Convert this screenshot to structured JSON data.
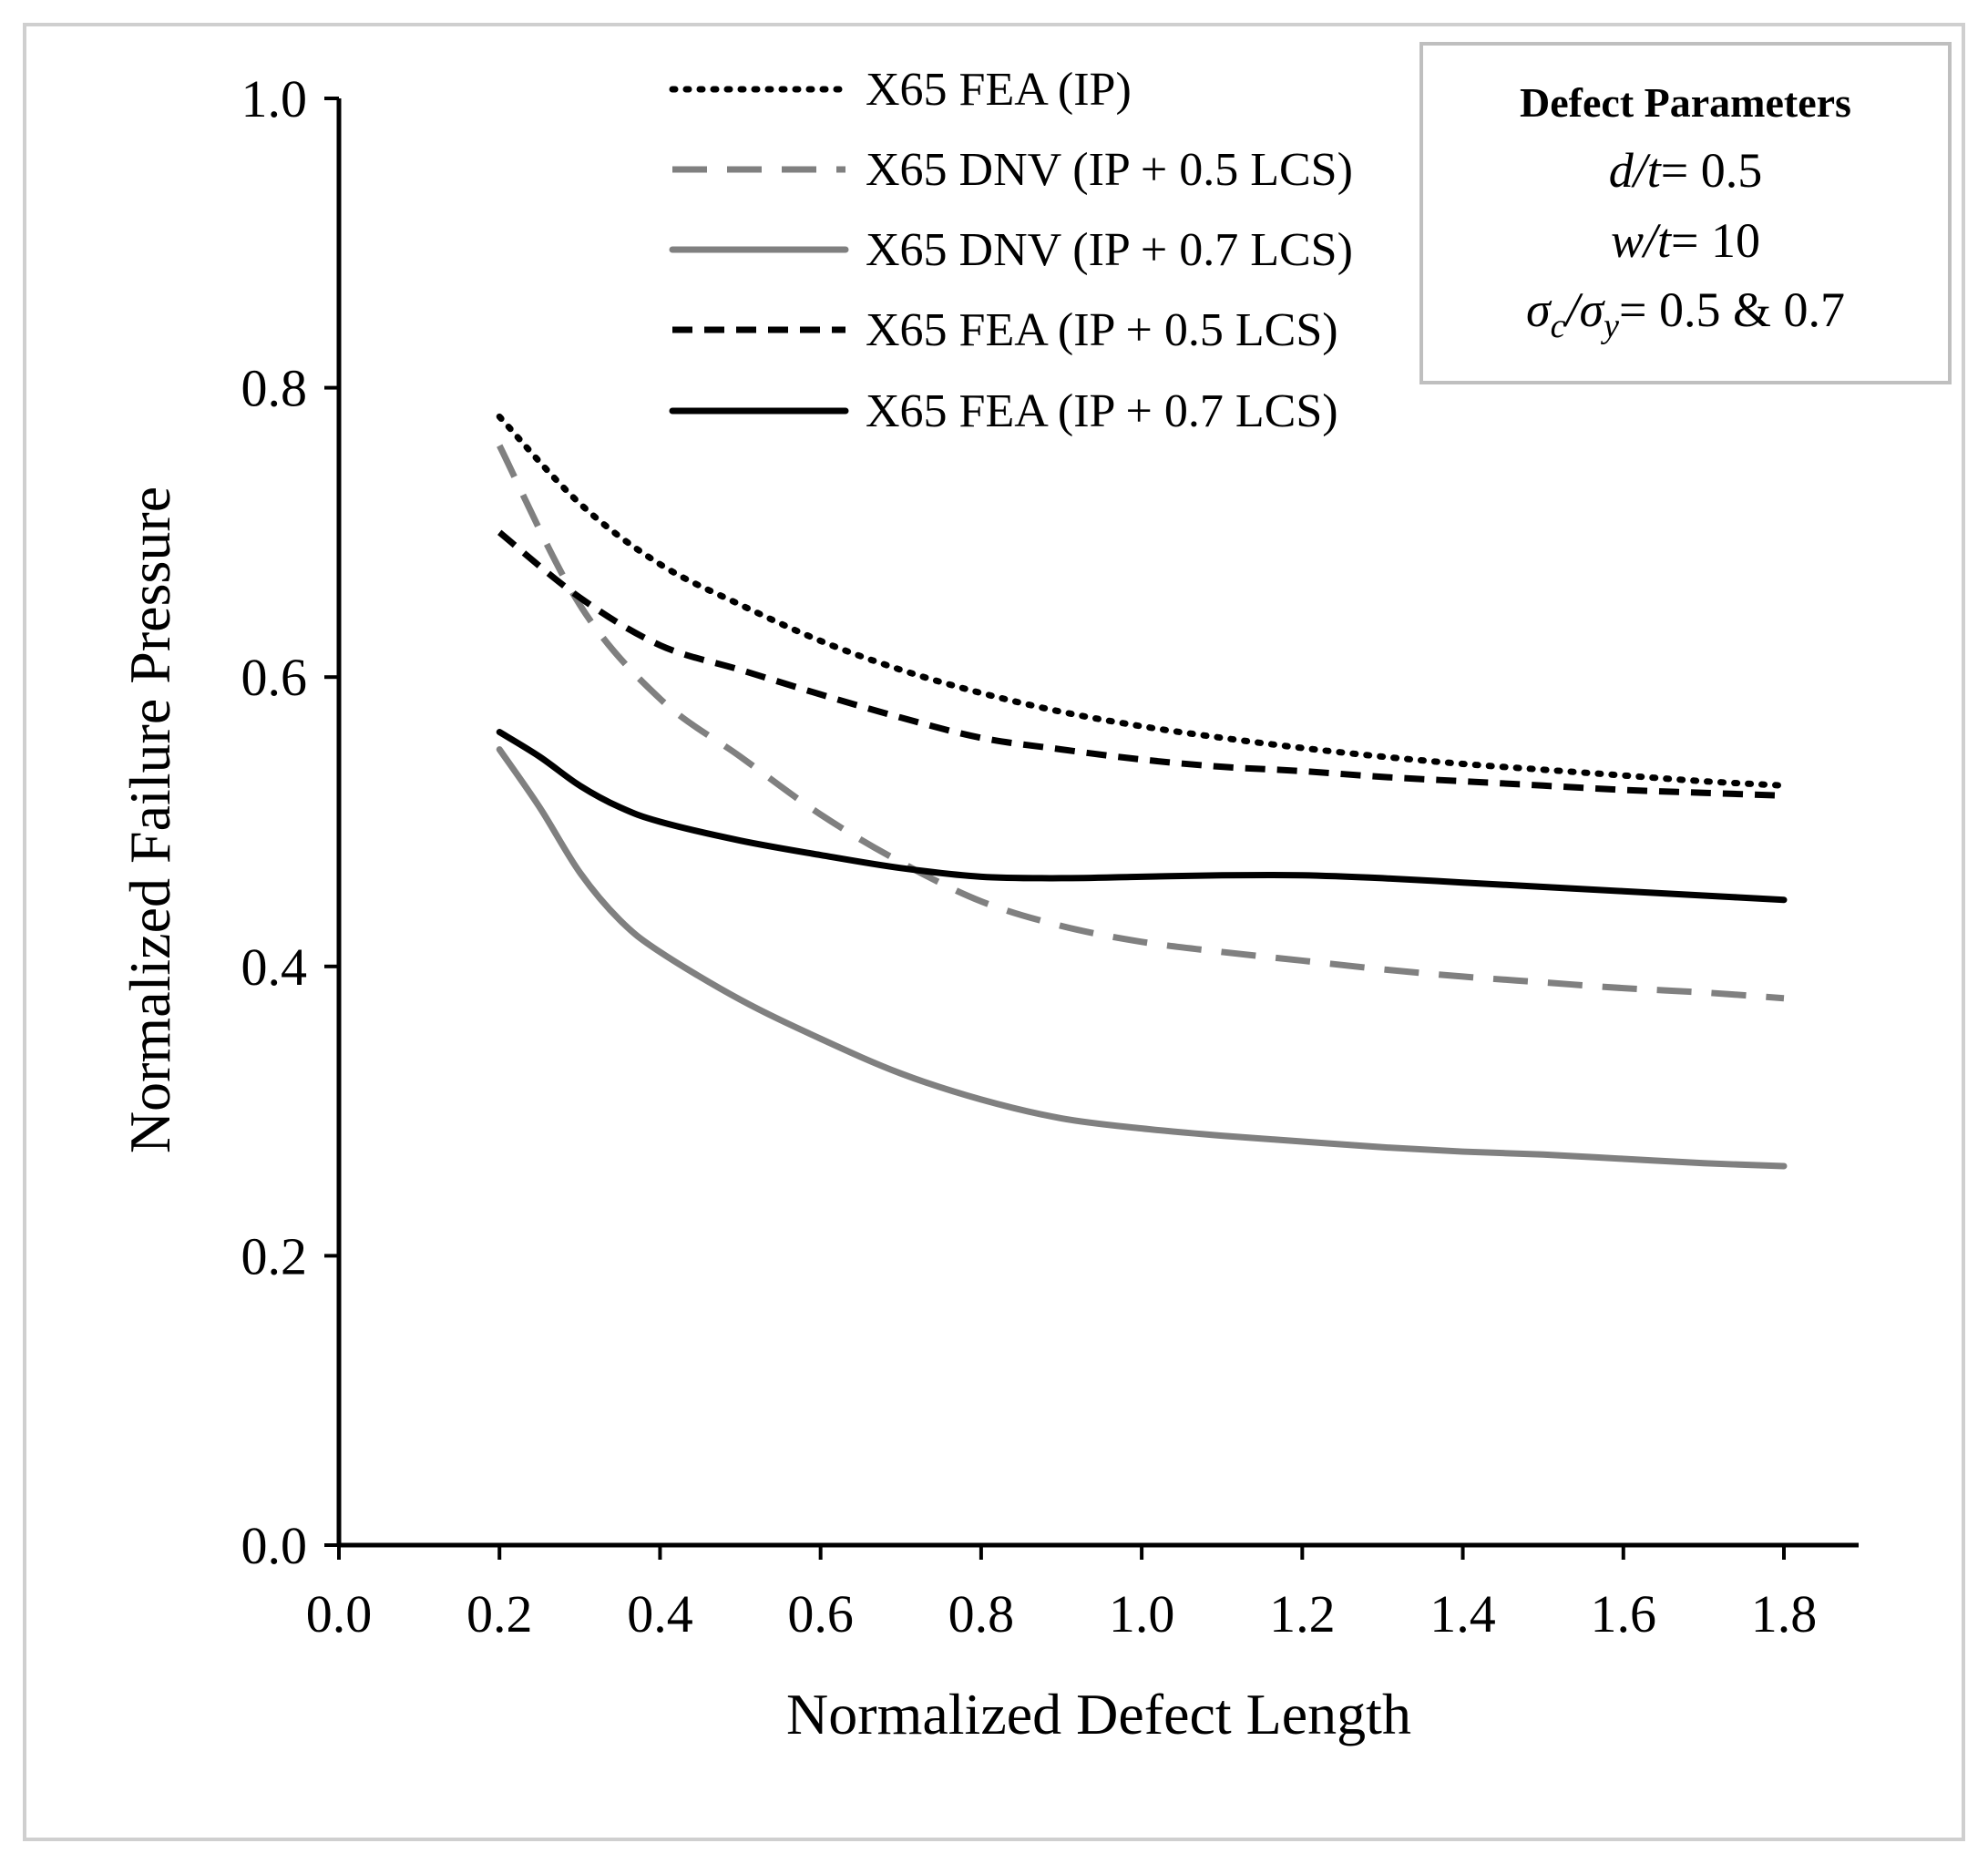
{
  "chart_data": {
    "type": "line",
    "title": "",
    "xlabel": "Normalized Defect Length",
    "ylabel": "Normalized Failure Pressure",
    "xlim": [
      0.0,
      1.9
    ],
    "ylim": [
      0.0,
      1.0
    ],
    "x_ticks": [
      "0.0",
      "0.2",
      "0.4",
      "0.6",
      "0.8",
      "1.0",
      "1.2",
      "1.4",
      "1.6",
      "1.8"
    ],
    "y_ticks": [
      "0.0",
      "0.2",
      "0.4",
      "0.6",
      "0.8",
      "1.0"
    ],
    "grid": false,
    "legend_position": "top-center",
    "series": [
      {
        "name": "X65 FEA (IP)",
        "color": "#000000",
        "style": "dotted",
        "x": [
          0.2,
          0.3,
          0.4,
          0.5,
          0.6,
          0.7,
          0.8,
          0.9,
          1.0,
          1.1,
          1.2,
          1.3,
          1.4,
          1.5,
          1.6,
          1.7,
          1.8
        ],
        "y": [
          0.78,
          0.72,
          0.678,
          0.65,
          0.625,
          0.605,
          0.589,
          0.576,
          0.566,
          0.558,
          0.551,
          0.545,
          0.54,
          0.536,
          0.532,
          0.528,
          0.525
        ]
      },
      {
        "name": "X65 DNV (IP + 0.5 LCS)",
        "color": "#808080",
        "style": "dashed",
        "x": [
          0.2,
          0.3,
          0.4,
          0.5,
          0.6,
          0.7,
          0.8,
          0.9,
          1.0,
          1.1,
          1.2,
          1.3,
          1.4,
          1.5,
          1.6,
          1.7,
          1.8
        ],
        "y": [
          0.76,
          0.65,
          0.585,
          0.545,
          0.505,
          0.472,
          0.445,
          0.428,
          0.417,
          0.41,
          0.404,
          0.398,
          0.393,
          0.389,
          0.385,
          0.382,
          0.378
        ]
      },
      {
        "name": "X65 DNV (IP + 0.7 LCS)",
        "color": "#808080",
        "style": "solid",
        "x": [
          0.2,
          0.25,
          0.3,
          0.35,
          0.4,
          0.5,
          0.6,
          0.7,
          0.8,
          0.9,
          1.0,
          1.1,
          1.2,
          1.3,
          1.4,
          1.5,
          1.6,
          1.7,
          1.8
        ],
        "y": [
          0.55,
          0.51,
          0.465,
          0.432,
          0.41,
          0.377,
          0.35,
          0.326,
          0.308,
          0.295,
          0.288,
          0.283,
          0.279,
          0.275,
          0.272,
          0.27,
          0.267,
          0.264,
          0.262
        ]
      },
      {
        "name": "X65 FEA (IP + 0.5 LCS)",
        "color": "#000000",
        "style": "dashed",
        "x": [
          0.2,
          0.3,
          0.4,
          0.5,
          0.6,
          0.7,
          0.8,
          0.9,
          1.0,
          1.1,
          1.2,
          1.3,
          1.4,
          1.5,
          1.6,
          1.7,
          1.8
        ],
        "y": [
          0.7,
          0.655,
          0.622,
          0.605,
          0.588,
          0.572,
          0.558,
          0.55,
          0.543,
          0.538,
          0.535,
          0.531,
          0.528,
          0.525,
          0.522,
          0.52,
          0.518
        ]
      },
      {
        "name": "X65 FEA (IP + 0.7 LCS)",
        "color": "#000000",
        "style": "solid",
        "x": [
          0.2,
          0.25,
          0.3,
          0.35,
          0.4,
          0.5,
          0.6,
          0.7,
          0.8,
          0.9,
          1.0,
          1.1,
          1.2,
          1.3,
          1.4,
          1.5,
          1.6,
          1.7,
          1.8
        ],
        "y": [
          0.562,
          0.545,
          0.525,
          0.51,
          0.5,
          0.487,
          0.477,
          0.468,
          0.462,
          0.461,
          0.462,
          0.463,
          0.463,
          0.461,
          0.458,
          0.455,
          0.452,
          0.449,
          0.446
        ]
      }
    ],
    "annotation": {
      "title": "Defect Parameters",
      "line1_var": "d/t",
      "line1_val": "= 0.5",
      "line2_var": "w/t",
      "line2_val": "= 10",
      "line3_sigma": "σ",
      "line3_c": "c",
      "line3_slash": "/σ",
      "line3_y": "y",
      "line3_val": "= 0.5 & 0.7"
    }
  }
}
